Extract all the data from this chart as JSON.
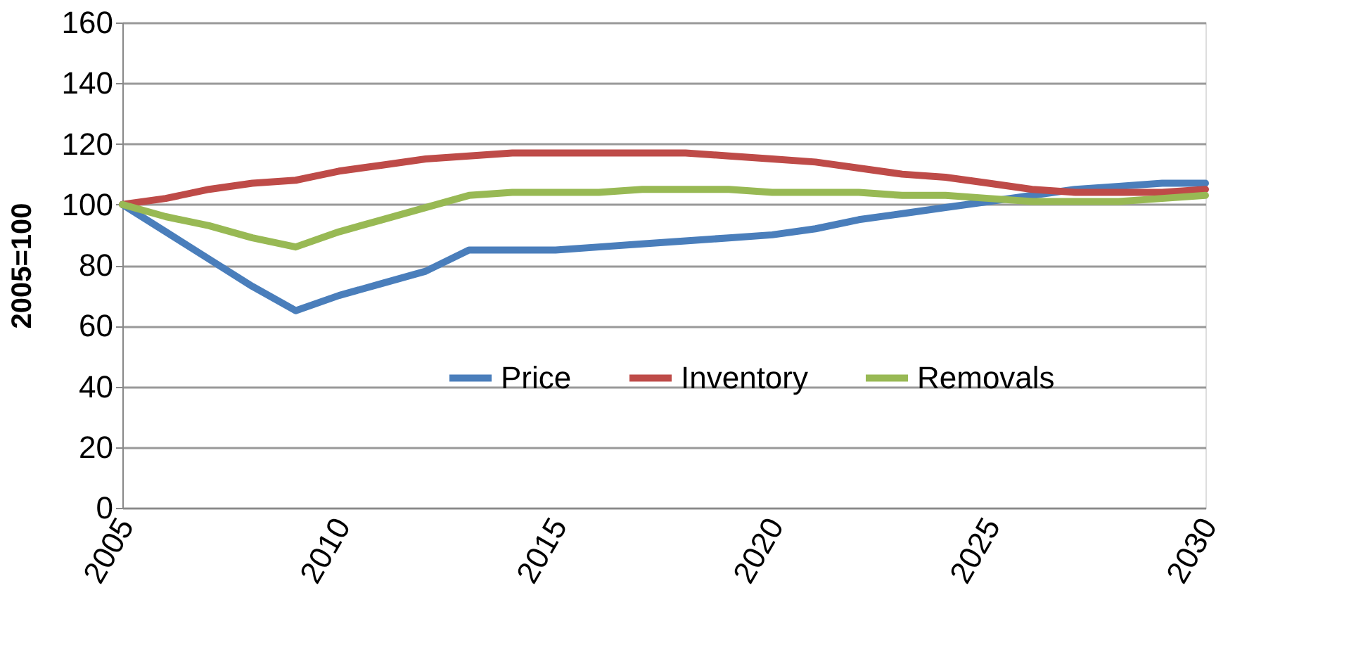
{
  "chart_data": {
    "type": "line",
    "ylabel": "2005=100",
    "x": [
      2005,
      2006,
      2007,
      2008,
      2009,
      2010,
      2011,
      2012,
      2013,
      2014,
      2015,
      2016,
      2017,
      2018,
      2019,
      2020,
      2021,
      2022,
      2023,
      2024,
      2025,
      2026,
      2027,
      2028,
      2029,
      2030
    ],
    "series": [
      {
        "name": "Price",
        "color": "#4a7ebb",
        "values": [
          100,
          91,
          82,
          73,
          65,
          70,
          74,
          78,
          85,
          85,
          85,
          86,
          87,
          88,
          89,
          90,
          92,
          95,
          97,
          99,
          101,
          103,
          105,
          106,
          107,
          107
        ]
      },
      {
        "name": "Inventory",
        "color": "#be4b48",
        "values": [
          100,
          102,
          105,
          107,
          108,
          111,
          113,
          115,
          116,
          117,
          117,
          117,
          117,
          117,
          116,
          115,
          114,
          112,
          110,
          109,
          107,
          105,
          104,
          104,
          104,
          105
        ]
      },
      {
        "name": "Removals",
        "color": "#98b954",
        "values": [
          100,
          96,
          93,
          89,
          86,
          91,
          95,
          99,
          103,
          104,
          104,
          104,
          105,
          105,
          105,
          104,
          104,
          104,
          103,
          103,
          102,
          101,
          101,
          101,
          102,
          103
        ]
      }
    ],
    "xlim": [
      2005,
      2030
    ],
    "xticks": [
      2005,
      2010,
      2015,
      2020,
      2025,
      2030
    ],
    "ylim": [
      0,
      160
    ],
    "yticks": [
      0,
      20,
      40,
      60,
      80,
      100,
      120,
      140,
      160
    ],
    "grid": "y",
    "legend": "bottom",
    "marker": "none",
    "line_style": "solid"
  }
}
